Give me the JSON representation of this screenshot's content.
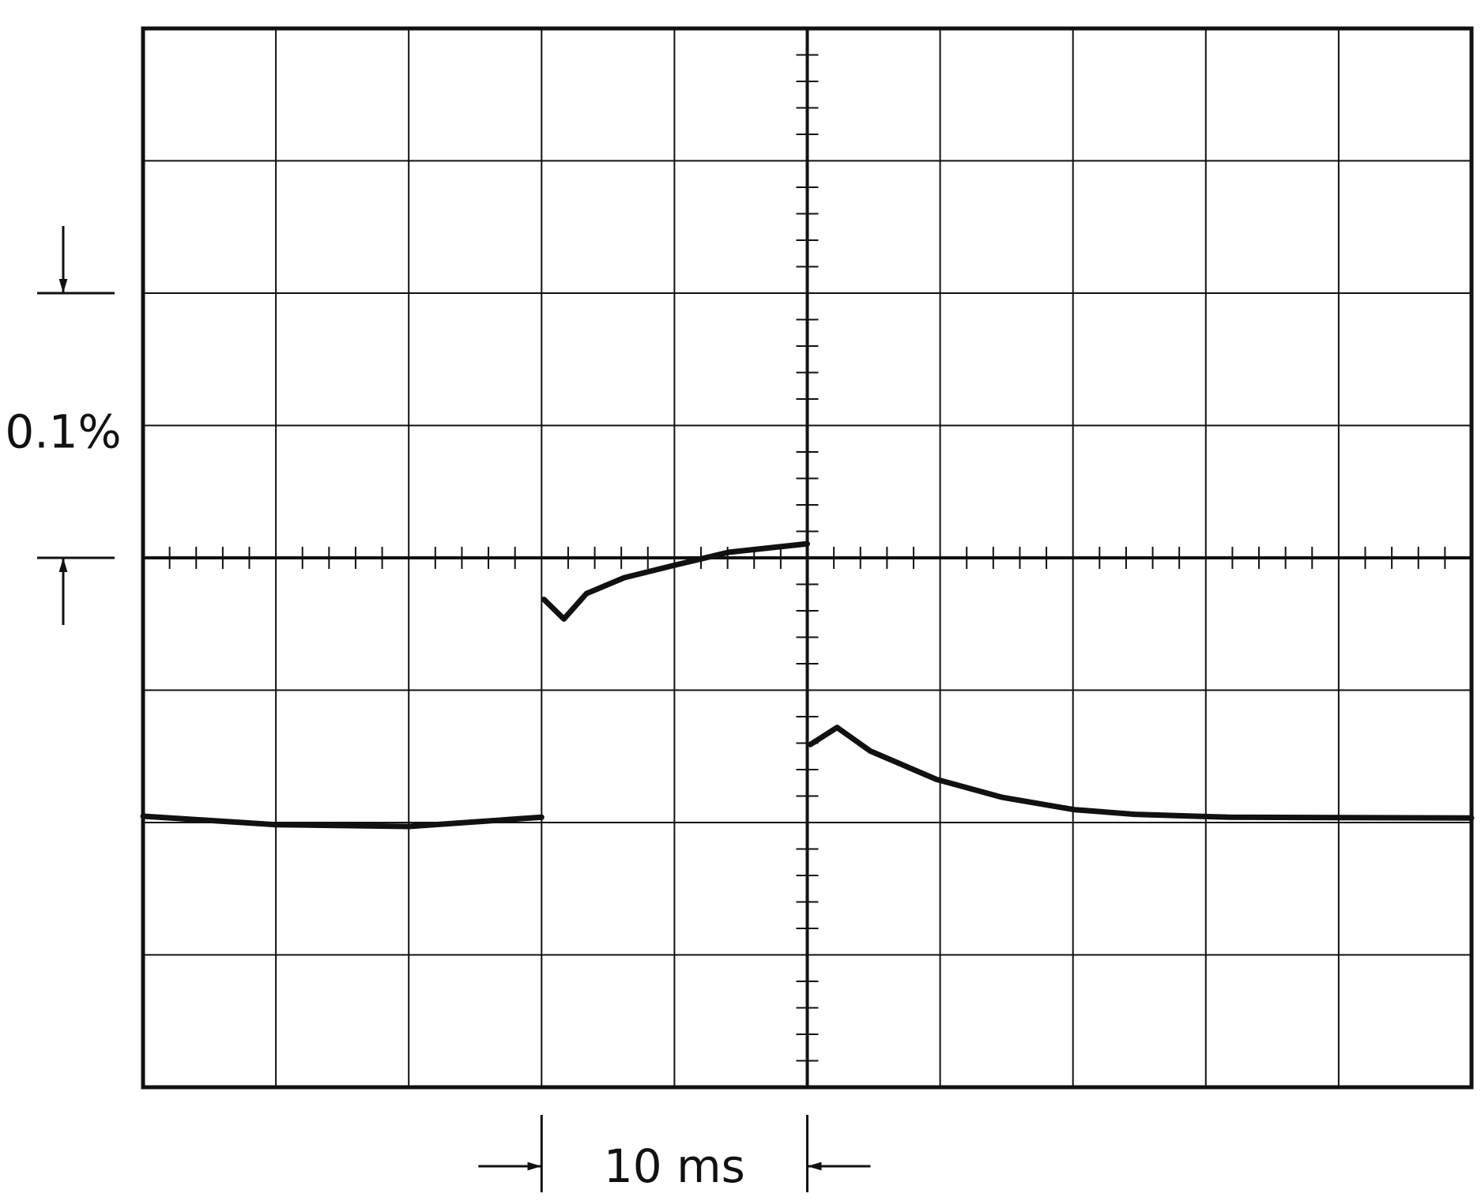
{
  "chart_data": {
    "type": "line",
    "xlim": [
      0,
      50
    ],
    "ylim": [
      -0.2,
      0.2
    ],
    "xgrid": [
      0,
      5,
      10,
      15,
      20,
      25,
      30,
      35,
      40,
      45,
      50
    ],
    "ygrid": [
      -0.2,
      -0.15,
      -0.1,
      -0.05,
      0,
      0.05,
      0.1,
      0.15,
      0.2
    ],
    "x": [
      0,
      5,
      10,
      15,
      15,
      15.09,
      15.84,
      16.69,
      18.11,
      20,
      22.03,
      25,
      25,
      25.12,
      26.12,
      27.37,
      29.86,
      32.35,
      35.02,
      37.33,
      40.89,
      50
    ],
    "series": [
      {
        "color": "#111111",
        "values": [
          -0.0976,
          -0.1008,
          -0.1015,
          -0.098,
          null,
          -0.0157,
          -0.0231,
          -0.0135,
          -0.0075,
          -0.0028,
          0.0021,
          0.0053,
          null,
          -0.0705,
          -0.0641,
          -0.073,
          -0.0837,
          -0.0905,
          -0.0951,
          -0.0969,
          -0.098,
          -0.0983
        ]
      }
    ],
    "annotations": [
      {
        "text": "0.1%",
        "axis": "y",
        "from": 0,
        "to": 0.1
      },
      {
        "text": "10 ms",
        "axis": "x",
        "from": 15,
        "to": 25
      }
    ]
  }
}
